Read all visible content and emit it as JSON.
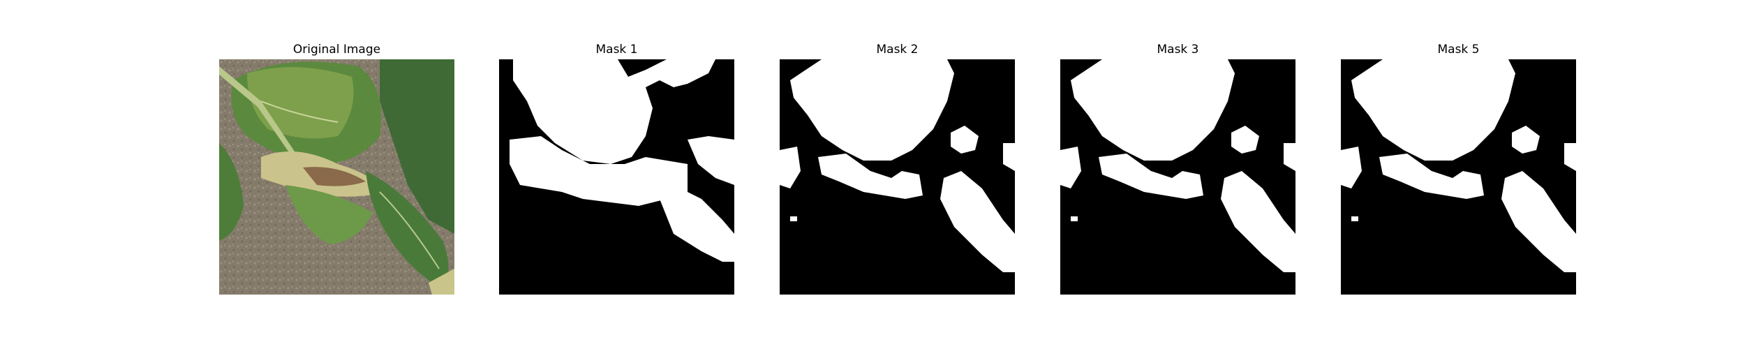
{
  "panels": [
    {
      "title": "Original Image"
    },
    {
      "title": "Mask 1"
    },
    {
      "title": "Mask 2"
    },
    {
      "title": "Mask 3"
    },
    {
      "title": "Mask 5"
    }
  ],
  "colors": {
    "mask_background": "#000000",
    "mask_foreground": "#ffffff",
    "soil": "#8a8070",
    "leaf_dark": "#4f7a3a",
    "leaf_light": "#8fae5c",
    "leaf_yellow": "#c9c58a",
    "leaf_brown": "#8a6a4a"
  }
}
